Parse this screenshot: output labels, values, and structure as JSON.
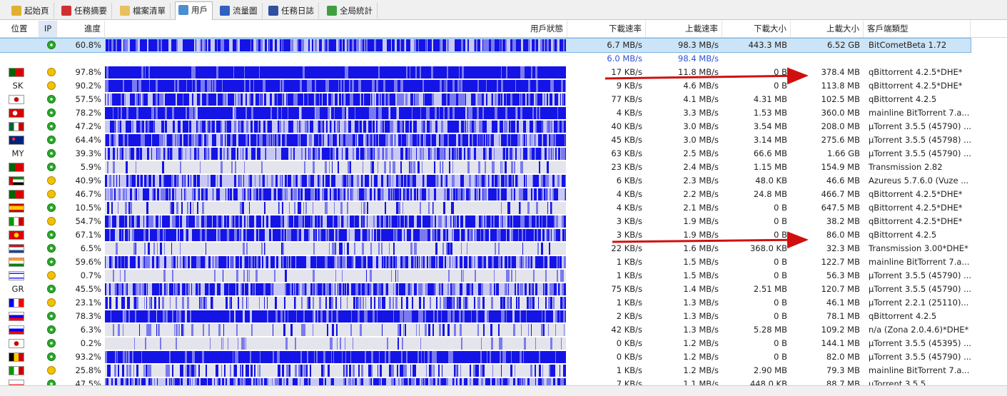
{
  "tabs": [
    "起始頁",
    "任務摘要",
    "檔案清單",
    "用戶",
    "流量圖",
    "任務日誌",
    "全局統計"
  ],
  "columns": [
    "位置",
    "IP",
    "進度",
    "用戶狀態",
    "下載速率",
    "上載速率",
    "下載大小",
    "上載大小",
    "客戶端類型"
  ],
  "self": {
    "progress": "60.8%",
    "download_rate": "6.7 MB/s",
    "upload_rate": "98.3 MB/s",
    "download_size": "443.3 MB",
    "upload_size": "6.52 GB",
    "client": "BitCometBeta 1.72"
  },
  "totals": {
    "download_rate": "6.0 MB/s",
    "upload_rate": "98.4 MB/s"
  },
  "peers": [
    {
      "progress": "97.8%",
      "download_rate": "17 KB/s",
      "upload_rate": "11.8 MB/s",
      "download_size": "0 B",
      "upload_size": "378.4 MB",
      "client": "qBittorrent 4.2.5*DHE*"
    },
    {
      "location": "SK",
      "progress": "90.2%",
      "download_rate": "9 KB/s",
      "upload_rate": "4.6 MB/s",
      "download_size": "0 B",
      "upload_size": "113.8 MB",
      "client": "qBittorrent 4.2.5*DHE*"
    },
    {
      "progress": "57.5%",
      "download_rate": "77 KB/s",
      "upload_rate": "4.1 MB/s",
      "download_size": "4.31 MB",
      "upload_size": "102.5 MB",
      "client": "qBittorrent 4.2.5"
    },
    {
      "progress": "78.2%",
      "download_rate": "4 KB/s",
      "upload_rate": "3.3 MB/s",
      "download_size": "1.53 MB",
      "upload_size": "360.0 MB",
      "client": "mainline BitTorrent 7.a..."
    },
    {
      "progress": "47.2%",
      "download_rate": "40 KB/s",
      "upload_rate": "3.0 MB/s",
      "download_size": "3.54 MB",
      "upload_size": "208.0 MB",
      "client": "µTorrent 3.5.5 (45790) ..."
    },
    {
      "progress": "64.4%",
      "download_rate": "45 KB/s",
      "upload_rate": "3.0 MB/s",
      "download_size": "3.14 MB",
      "upload_size": "275.6 MB",
      "client": "µTorrent 3.5.5 (45798) ..."
    },
    {
      "location": "MY",
      "progress": "39.3%",
      "download_rate": "63 KB/s",
      "upload_rate": "2.5 MB/s",
      "download_size": "66.6 MB",
      "upload_size": "1.66 GB",
      "client": "µTorrent 3.5.5 (45790) ..."
    },
    {
      "progress": "5.9%",
      "download_rate": "23 KB/s",
      "upload_rate": "2.4 MB/s",
      "download_size": "1.15 MB",
      "upload_size": "154.9 MB",
      "client": "Transmission 2.82"
    },
    {
      "progress": "40.9%",
      "download_rate": "6 KB/s",
      "upload_rate": "2.3 MB/s",
      "download_size": "48.0 KB",
      "upload_size": "46.6 MB",
      "client": "Azureus 5.7.6.0 (Vuze ..."
    },
    {
      "progress": "46.7%",
      "download_rate": "4 KB/s",
      "upload_rate": "2.2 MB/s",
      "download_size": "24.8 MB",
      "upload_size": "466.7 MB",
      "client": "qBittorrent 4.2.5*DHE*"
    },
    {
      "progress": "10.5%",
      "download_rate": "4 KB/s",
      "upload_rate": "2.1 MB/s",
      "download_size": "0 B",
      "upload_size": "647.5 MB",
      "client": "qBittorrent 4.2.5*DHE*"
    },
    {
      "progress": "54.7%",
      "download_rate": "3 KB/s",
      "upload_rate": "1.9 MB/s",
      "download_size": "0 B",
      "upload_size": "38.2 MB",
      "client": "qBittorrent 4.2.5*DHE*"
    },
    {
      "progress": "67.1%",
      "download_rate": "3 KB/s",
      "upload_rate": "1.9 MB/s",
      "download_size": "0 B",
      "upload_size": "86.0 MB",
      "client": "qBittorrent 4.2.5"
    },
    {
      "progress": "6.5%",
      "download_rate": "22 KB/s",
      "upload_rate": "1.6 MB/s",
      "download_size": "368.0 KB",
      "upload_size": "32.3 MB",
      "client": "Transmission 3.00*DHE*"
    },
    {
      "progress": "59.6%",
      "download_rate": "1 KB/s",
      "upload_rate": "1.5 MB/s",
      "download_size": "0 B",
      "upload_size": "122.7 MB",
      "client": "mainline BitTorrent 7.a..."
    },
    {
      "progress": "0.7%",
      "download_rate": "1 KB/s",
      "upload_rate": "1.5 MB/s",
      "download_size": "0 B",
      "upload_size": "56.3 MB",
      "client": "µTorrent 3.5.5 (45790) ..."
    },
    {
      "location": "GR",
      "progress": "45.5%",
      "download_rate": "75 KB/s",
      "upload_rate": "1.4 MB/s",
      "download_size": "2.51 MB",
      "upload_size": "120.7 MB",
      "client": "µTorrent 3.5.5 (45790) ..."
    },
    {
      "progress": "23.1%",
      "download_rate": "1 KB/s",
      "upload_rate": "1.3 MB/s",
      "download_size": "0 B",
      "upload_size": "46.1 MB",
      "client": "µTorrent 2.2.1 (25110)..."
    },
    {
      "progress": "78.3%",
      "download_rate": "2 KB/s",
      "upload_rate": "1.3 MB/s",
      "download_size": "0 B",
      "upload_size": "78.1 MB",
      "client": "qBittorrent 4.2.5"
    },
    {
      "progress": "6.3%",
      "download_rate": "42 KB/s",
      "upload_rate": "1.3 MB/s",
      "download_size": "5.28 MB",
      "upload_size": "109.2 MB",
      "client": "n/a (Zona 2.0.4.6)*DHE*"
    },
    {
      "progress": "0.2%",
      "download_rate": "0 KB/s",
      "upload_rate": "1.2 MB/s",
      "download_size": "0 B",
      "upload_size": "144.1 MB",
      "client": "µTorrent 3.5.5 (45395) ..."
    },
    {
      "progress": "93.2%",
      "download_rate": "0 KB/s",
      "upload_rate": "1.2 MB/s",
      "download_size": "0 B",
      "upload_size": "82.0 MB",
      "client": "µTorrent 3.5.5 (45790) ..."
    },
    {
      "progress": "25.8%",
      "download_rate": "1 KB/s",
      "upload_rate": "1.2 MB/s",
      "download_size": "2.90 MB",
      "upload_size": "79.3 MB",
      "client": "mainline BitTorrent 7.a..."
    },
    {
      "progress": "47.5%",
      "download_rate": "7 KB/s",
      "upload_rate": "1.1 MB/s",
      "download_size": "448.0 KB",
      "upload_size": "88.7 MB",
      "client": "µTorrent 3.5.5 ..."
    }
  ]
}
